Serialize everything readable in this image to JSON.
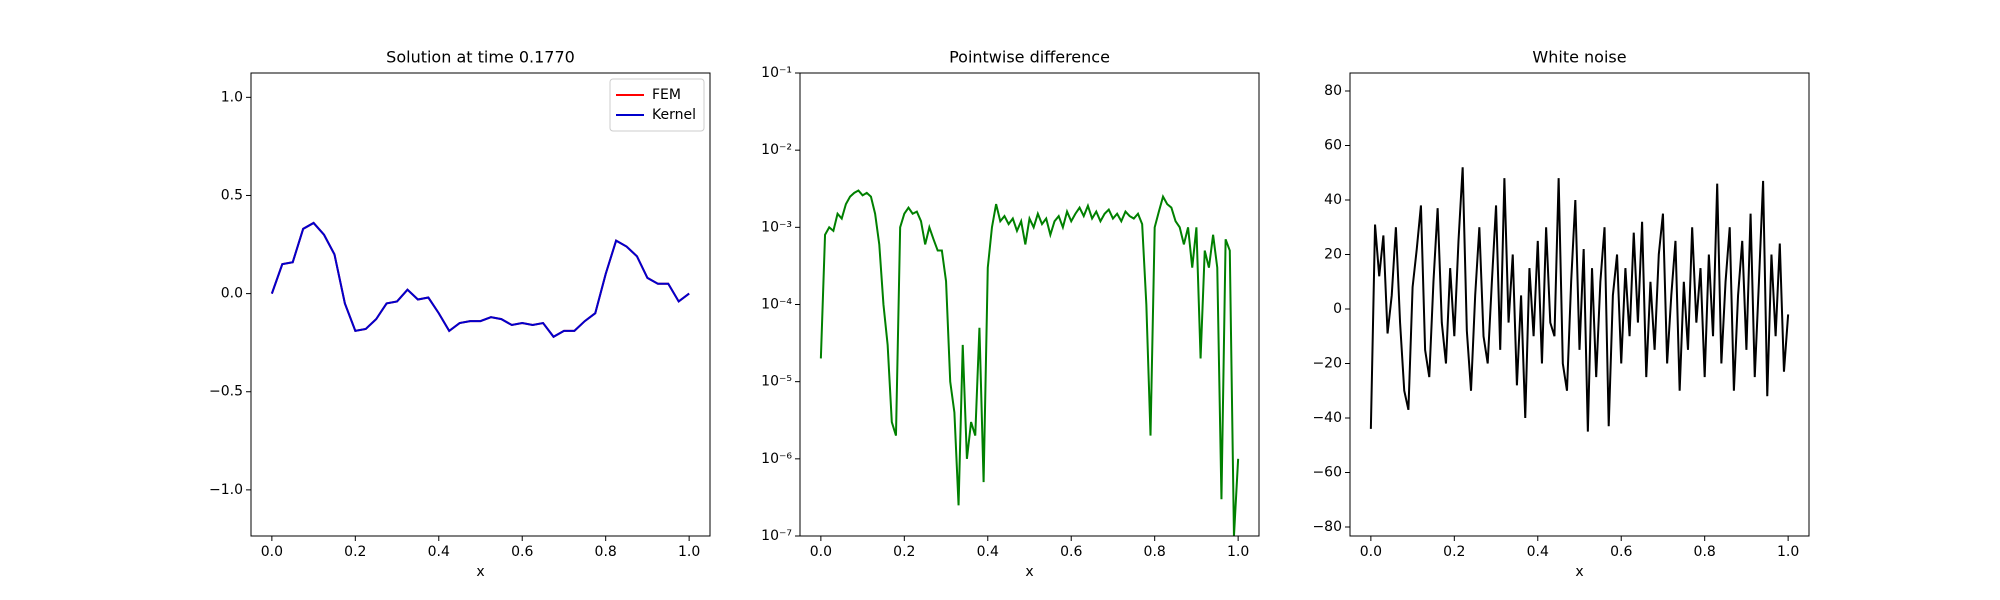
{
  "chart_data": [
    {
      "type": "line",
      "title": "Solution at time 0.1770",
      "xlabel": "x",
      "x": [
        0,
        0.025,
        0.05,
        0.075,
        0.1,
        0.125,
        0.15,
        0.175,
        0.2,
        0.225,
        0.25,
        0.275,
        0.3,
        0.325,
        0.35,
        0.375,
        0.4,
        0.425,
        0.45,
        0.475,
        0.5,
        0.525,
        0.55,
        0.575,
        0.6,
        0.625,
        0.65,
        0.675,
        0.7,
        0.725,
        0.75,
        0.775,
        0.8,
        0.825,
        0.85,
        0.875,
        0.9,
        0.925,
        0.95,
        0.975,
        1
      ],
      "series": [
        {
          "name": "FEM",
          "color": "#ff0000",
          "values": [
            0,
            0.15,
            0.16,
            0.33,
            0.36,
            0.3,
            0.2,
            -0.05,
            -0.19,
            -0.18,
            -0.13,
            -0.05,
            -0.04,
            0.02,
            -0.03,
            -0.02,
            -0.1,
            -0.19,
            -0.15,
            -0.14,
            -0.14,
            -0.12,
            -0.13,
            -0.16,
            -0.15,
            -0.16,
            -0.15,
            -0.22,
            -0.19,
            -0.19,
            -0.14,
            -0.1,
            0.1,
            0.27,
            0.24,
            0.19,
            0.08,
            0.05,
            0.05,
            -0.04,
            0
          ]
        },
        {
          "name": "Kernel",
          "color": "#0000cc",
          "values": [
            0,
            0.15,
            0.16,
            0.33,
            0.36,
            0.3,
            0.2,
            -0.05,
            -0.19,
            -0.18,
            -0.13,
            -0.05,
            -0.04,
            0.02,
            -0.03,
            -0.02,
            -0.1,
            -0.19,
            -0.15,
            -0.14,
            -0.14,
            -0.12,
            -0.13,
            -0.16,
            -0.15,
            -0.16,
            -0.15,
            -0.22,
            -0.19,
            -0.19,
            -0.14,
            -0.1,
            0.1,
            0.27,
            0.24,
            0.19,
            0.08,
            0.05,
            0.05,
            -0.04,
            0
          ]
        }
      ],
      "xlim": [
        -0.05,
        1.05
      ],
      "xticks": [
        {
          "value": 0,
          "label": "0.0"
        },
        0.2,
        0.4,
        0.6,
        0.8,
        {
          "value": 1,
          "label": "1.0"
        }
      ],
      "ylim": [
        -1.235,
        1.124
      ],
      "yticks": [
        {
          "value": -1,
          "label": "−1.0"
        },
        {
          "value": -0.5,
          "label": "−0.5"
        },
        {
          "value": 0,
          "label": "0.0"
        },
        0.5,
        {
          "value": 1,
          "label": "1.0"
        }
      ],
      "legend": "upper right"
    },
    {
      "type": "line",
      "title": "Pointwise difference",
      "xlabel": "x",
      "yscale": "log",
      "x": [
        0,
        0.01,
        0.02,
        0.03,
        0.04,
        0.05,
        0.06,
        0.07,
        0.08,
        0.09,
        0.1,
        0.11,
        0.12,
        0.13,
        0.14,
        0.15,
        0.16,
        0.17,
        0.18,
        0.19,
        0.2,
        0.21,
        0.22,
        0.23,
        0.24,
        0.25,
        0.26,
        0.27,
        0.28,
        0.29,
        0.3,
        0.31,
        0.32,
        0.33,
        0.34,
        0.35,
        0.36,
        0.37,
        0.38,
        0.39,
        0.4,
        0.41,
        0.42,
        0.43,
        0.44,
        0.45,
        0.46,
        0.47,
        0.48,
        0.49,
        0.5,
        0.51,
        0.52,
        0.53,
        0.54,
        0.55,
        0.56,
        0.57,
        0.58,
        0.59,
        0.6,
        0.61,
        0.62,
        0.63,
        0.64,
        0.65,
        0.66,
        0.67,
        0.68,
        0.69,
        0.7,
        0.71,
        0.72,
        0.73,
        0.74,
        0.75,
        0.76,
        0.77,
        0.78,
        0.79,
        0.8,
        0.81,
        0.82,
        0.83,
        0.84,
        0.85,
        0.86,
        0.87,
        0.88,
        0.89,
        0.9,
        0.91,
        0.92,
        0.93,
        0.94,
        0.95,
        0.96,
        0.97,
        0.98,
        0.99,
        1
      ],
      "series": [
        {
          "name": null,
          "color": "#008000",
          "values": [
            2e-05,
            0.0008,
            0.001,
            0.0009,
            0.0015,
            0.0013,
            0.002,
            0.0025,
            0.0028,
            0.003,
            0.0026,
            0.0028,
            0.0025,
            0.0015,
            0.0006,
            0.0001,
            3e-05,
            3e-06,
            2e-06,
            0.001,
            0.0015,
            0.0018,
            0.0015,
            0.0016,
            0.0012,
            0.0006,
            0.001,
            0.0007,
            0.0005,
            0.0005,
            0.0002,
            1e-05,
            4e-06,
            2.5e-07,
            3e-05,
            1e-06,
            3e-06,
            2e-06,
            5e-05,
            5e-07,
            0.0003,
            0.001,
            0.002,
            0.0012,
            0.0014,
            0.0011,
            0.0013,
            0.0009,
            0.0012,
            0.0006,
            0.0013,
            0.001,
            0.0015,
            0.0011,
            0.0013,
            0.0008,
            0.0012,
            0.0014,
            0.001,
            0.0016,
            0.0012,
            0.0015,
            0.0018,
            0.0014,
            0.0019,
            0.0013,
            0.0016,
            0.0012,
            0.0015,
            0.0017,
            0.0013,
            0.0015,
            0.0012,
            0.0016,
            0.0014,
            0.0013,
            0.0015,
            0.0011,
            0.0001,
            2e-06,
            0.001,
            0.0016,
            0.0025,
            0.002,
            0.0018,
            0.0012,
            0.001,
            0.0006,
            0.001,
            0.0003,
            0.001,
            2e-05,
            0.0005,
            0.0003,
            0.0008,
            0.0003,
            3e-07,
            0.0007,
            0.0005,
            1e-07,
            1e-06
          ]
        }
      ],
      "xlim": [
        -0.05,
        1.05
      ],
      "xticks": [
        {
          "value": 0,
          "label": "0.0"
        },
        0.2,
        0.4,
        0.6,
        0.8,
        {
          "value": 1,
          "label": "1.0"
        }
      ],
      "ylim": [
        1e-07,
        0.1
      ],
      "yticks": [
        {
          "value": 1e-07,
          "label": "10⁻⁷"
        },
        {
          "value": 1e-06,
          "label": "10⁻⁶"
        },
        {
          "value": 1e-05,
          "label": "10⁻⁵"
        },
        {
          "value": 0.0001,
          "label": "10⁻⁴"
        },
        {
          "value": 0.001,
          "label": "10⁻³"
        },
        {
          "value": 0.01,
          "label": "10⁻²"
        },
        {
          "value": 0.1,
          "label": "10⁻¹"
        }
      ]
    },
    {
      "type": "line",
      "title": "White noise",
      "xlabel": "x",
      "x": [
        0,
        0.01,
        0.02,
        0.03,
        0.04,
        0.05,
        0.06,
        0.07,
        0.08,
        0.09,
        0.1,
        0.11,
        0.12,
        0.13,
        0.14,
        0.15,
        0.16,
        0.17,
        0.18,
        0.19,
        0.2,
        0.21,
        0.22,
        0.23,
        0.24,
        0.25,
        0.26,
        0.27,
        0.28,
        0.29,
        0.3,
        0.31,
        0.32,
        0.33,
        0.34,
        0.35,
        0.36,
        0.37,
        0.38,
        0.39,
        0.4,
        0.41,
        0.42,
        0.43,
        0.44,
        0.45,
        0.46,
        0.47,
        0.48,
        0.49,
        0.5,
        0.51,
        0.52,
        0.53,
        0.54,
        0.55,
        0.56,
        0.57,
        0.58,
        0.59,
        0.6,
        0.61,
        0.62,
        0.63,
        0.64,
        0.65,
        0.66,
        0.67,
        0.68,
        0.69,
        0.7,
        0.71,
        0.72,
        0.73,
        0.74,
        0.75,
        0.76,
        0.77,
        0.78,
        0.79,
        0.8,
        0.81,
        0.82,
        0.83,
        0.84,
        0.85,
        0.86,
        0.87,
        0.88,
        0.89,
        0.9,
        0.91,
        0.92,
        0.93,
        0.94,
        0.95,
        0.96,
        0.97,
        0.98,
        0.99,
        1
      ],
      "series": [
        {
          "name": null,
          "color": "#000000",
          "values": [
            -44,
            31,
            12,
            27,
            -9,
            5,
            30,
            -5,
            -30,
            -37,
            8,
            22,
            38,
            -15,
            -25,
            10,
            37,
            -5,
            -20,
            15,
            -10,
            25,
            52,
            -8,
            -30,
            5,
            30,
            -10,
            -20,
            10,
            38,
            -15,
            48,
            -5,
            20,
            -28,
            5,
            -40,
            15,
            -10,
            25,
            -20,
            30,
            -5,
            -10,
            48,
            -20,
            -30,
            10,
            40,
            -15,
            22,
            -45,
            15,
            -25,
            10,
            30,
            -43,
            5,
            20,
            -20,
            15,
            -10,
            28,
            -5,
            32,
            -25,
            10,
            -15,
            20,
            35,
            -20,
            5,
            25,
            -30,
            10,
            -15,
            30,
            -5,
            15,
            -25,
            20,
            -10,
            46,
            -20,
            10,
            30,
            -30,
            5,
            25,
            -15,
            35,
            -25,
            10,
            47,
            -32,
            20,
            -10,
            24,
            -23,
            -2
          ]
        }
      ],
      "xlim": [
        -0.05,
        1.05
      ],
      "xticks": [
        {
          "value": 0,
          "label": "0.0"
        },
        0.2,
        0.4,
        0.6,
        0.8,
        {
          "value": 1,
          "label": "1.0"
        }
      ],
      "ylim": [
        -83.3,
        86.6
      ],
      "yticks": [
        {
          "value": -80,
          "label": "−80"
        },
        {
          "value": -60,
          "label": "−60"
        },
        {
          "value": -40,
          "label": "−40"
        },
        {
          "value": -20,
          "label": "−20"
        },
        0,
        20,
        40,
        60,
        80
      ]
    }
  ]
}
